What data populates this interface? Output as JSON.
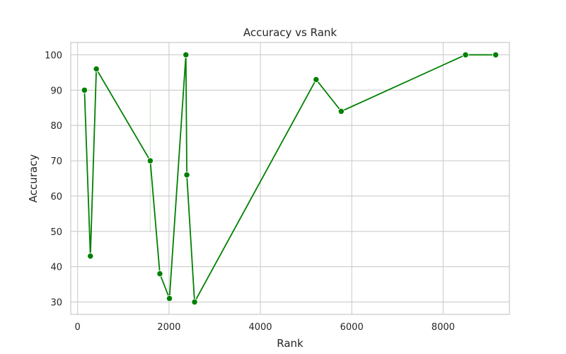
{
  "chart_data": {
    "type": "line",
    "title": "Accuracy vs Rank",
    "xlabel": "Rank",
    "ylabel": "Accuracy",
    "xlim": [
      -150,
      9450
    ],
    "ylim": [
      26.5,
      103.5
    ],
    "x_ticks": [
      0,
      2000,
      4000,
      6000,
      8000
    ],
    "y_ticks": [
      30,
      40,
      50,
      60,
      70,
      80,
      90,
      100
    ],
    "grid": true,
    "colors": {
      "line": "#008000",
      "grid": "#cccccc",
      "frame": "#cccccc"
    },
    "series": [
      {
        "points": [
          {
            "x": 150,
            "y": 90
          },
          {
            "x": 280,
            "y": 43
          },
          {
            "x": 410,
            "y": 96
          },
          {
            "x": 1590,
            "y": 70
          },
          {
            "x": 1800,
            "y": 38
          },
          {
            "x": 2010,
            "y": 31
          },
          {
            "x": 2370,
            "y": 100
          },
          {
            "x": 2390,
            "y": 66
          },
          {
            "x": 2560,
            "y": 30
          },
          {
            "x": 5220,
            "y": 93
          },
          {
            "x": 5770,
            "y": 84
          },
          {
            "x": 8490,
            "y": 100
          },
          {
            "x": 9150,
            "y": 100
          }
        ]
      }
    ],
    "error_bars": [
      {
        "x": 1590,
        "y_low": 50,
        "y_high": 90
      }
    ]
  }
}
